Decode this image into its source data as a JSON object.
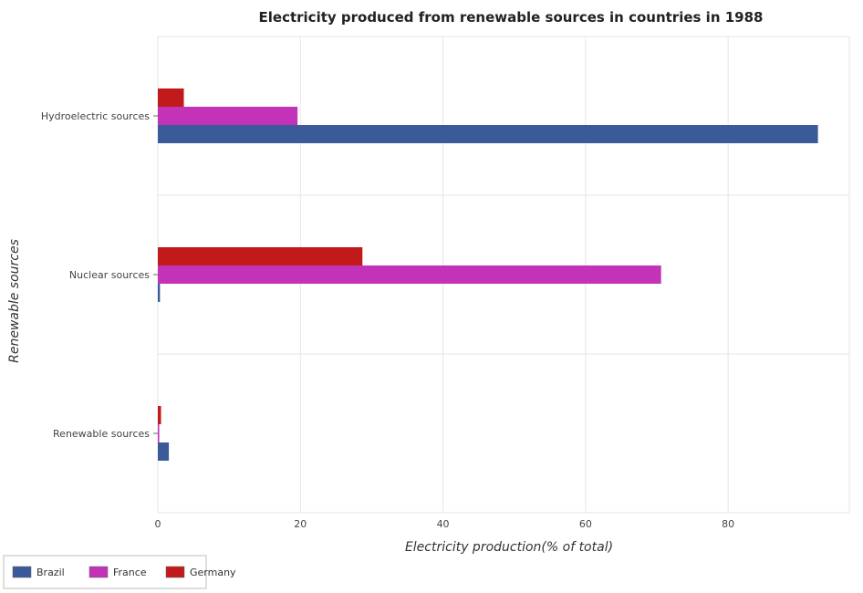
{
  "colors": {
    "Brazil": "#3a5a9a",
    "France": "#c233b8",
    "Germany": "#c21a1a"
  },
  "chart_data": {
    "type": "bar",
    "orientation": "horizontal",
    "title": "Electricity produced from renewable sources in countries in 1988",
    "xlabel": "Electricity production(% of total)",
    "ylabel": "Renewable sources",
    "categories": [
      "Hydroelectric sources",
      "Nuclear sources",
      "Renewable sources"
    ],
    "series": [
      {
        "name": "Brazil",
        "values": [
          92.6,
          0.3,
          1.55
        ]
      },
      {
        "name": "France",
        "values": [
          19.6,
          70.6,
          0.2
        ]
      },
      {
        "name": "Germany",
        "values": [
          3.65,
          28.7,
          0.45
        ]
      }
    ],
    "xlim": [
      0,
      97
    ],
    "xticks": [
      0,
      20,
      40,
      60,
      80
    ],
    "grid": true,
    "legend_position": "bottom-left"
  }
}
